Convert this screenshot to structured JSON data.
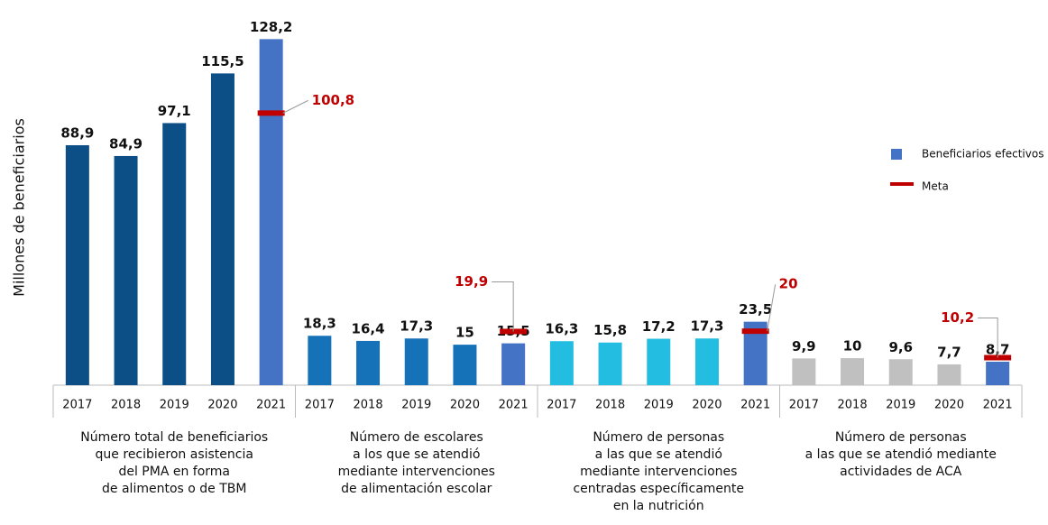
{
  "chart_data": {
    "type": "bar",
    "y_label": "Millones de beneficiarios",
    "ylim": [
      0,
      130
    ],
    "series": [
      {
        "name": "Beneficiarios efectivos",
        "color": "#4472c4"
      },
      {
        "name": "Meta",
        "color": "#c00000"
      }
    ],
    "groups": [
      {
        "label": [
          "Número total de beneficiarios",
          "que recibieron asistencia",
          "del PMA en forma",
          "de alimentos o de TBM"
        ],
        "categories": [
          "2017",
          "2018",
          "2019",
          "2020",
          "2021"
        ],
        "values": [
          88.9,
          84.9,
          97.1,
          115.5,
          128.2
        ],
        "value_labels": [
          "88,9",
          "84,9",
          "97,1",
          "115,5",
          "128,2"
        ],
        "colors": [
          "#0b4f86",
          "#0b4f86",
          "#0b4f86",
          "#0b4f86",
          "#4472c4"
        ],
        "target": 100.8,
        "target_label": "100,8"
      },
      {
        "label": [
          "Número de escolares",
          "a los que se atendió",
          "mediante intervenciones",
          "de alimentación escolar"
        ],
        "categories": [
          "2017",
          "2018",
          "2019",
          "2020",
          "2021"
        ],
        "values": [
          18.3,
          16.4,
          17.3,
          15,
          15.5
        ],
        "value_labels": [
          "18,3",
          "16,4",
          "17,3",
          "15",
          "15,5"
        ],
        "colors": [
          "#1672b8",
          "#1672b8",
          "#1672b8",
          "#1672b8",
          "#4472c4"
        ],
        "target": 19.9,
        "target_label": "19,9"
      },
      {
        "label": [
          "Número de personas",
          "a las que se atendió",
          "mediante intervenciones",
          "centradas específicamente",
          "en la nutrición"
        ],
        "categories": [
          "2017",
          "2018",
          "2019",
          "2020",
          "2021"
        ],
        "values": [
          16.3,
          15.8,
          17.2,
          17.3,
          23.5
        ],
        "value_labels": [
          "16,3",
          "15,8",
          "17,2",
          "17,3",
          "23,5"
        ],
        "colors": [
          "#22bde0",
          "#22bde0",
          "#22bde0",
          "#22bde0",
          "#4472c4"
        ],
        "target": 20,
        "target_label": "20"
      },
      {
        "label": [
          "Número de personas",
          "a las que se atendió mediante",
          "actividades de ACA"
        ],
        "categories": [
          "2017",
          "2018",
          "2019",
          "2020",
          "2021"
        ],
        "values": [
          9.9,
          10,
          9.6,
          7.7,
          8.7
        ],
        "value_labels": [
          "9,9",
          "10",
          "9,6",
          "7,7",
          "8,7"
        ],
        "colors": [
          "#c0c0c0",
          "#c0c0c0",
          "#c0c0c0",
          "#c0c0c0",
          "#4472c4"
        ],
        "target": 10.2,
        "target_label": "10,2"
      }
    ]
  }
}
